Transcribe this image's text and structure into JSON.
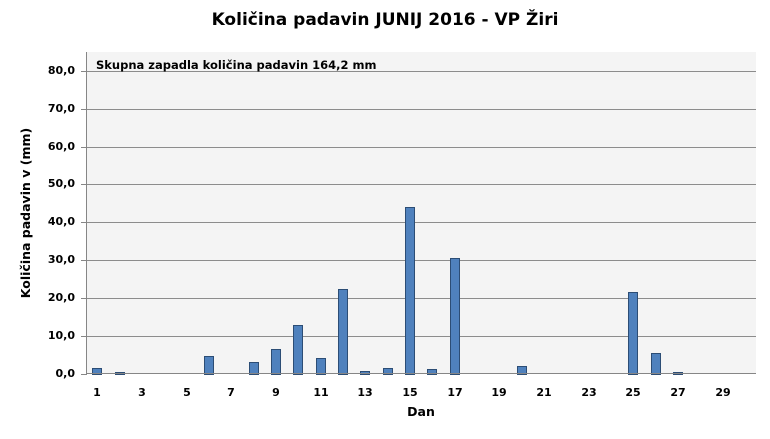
{
  "chart_data": {
    "type": "bar",
    "title": "Količina padavin JUNIJ 2016 - VP Žiri",
    "xlabel": "Dan",
    "ylabel": "Količina padavin v  (mm)",
    "annotation": "Skupna zapadla količina padavin 164,2 mm",
    "ylim": [
      0,
      80
    ],
    "yticks": [
      "0,0",
      "10,0",
      "20,0",
      "30,0",
      "40,0",
      "50,0",
      "60,0",
      "70,0",
      "80,0"
    ],
    "ytick_values": [
      0,
      10,
      20,
      30,
      40,
      50,
      60,
      70,
      80
    ],
    "xtick_labels": [
      "1",
      "3",
      "5",
      "7",
      "9",
      "11",
      "13",
      "15",
      "17",
      "19",
      "21",
      "23",
      "25",
      "27",
      "29"
    ],
    "grid": true,
    "legend": "none",
    "bar_color": "#4f81bd",
    "bar_edge_color": "#2c4d75",
    "plot_background": "#f4f4f4",
    "categories": [
      1,
      2,
      3,
      4,
      5,
      6,
      7,
      8,
      9,
      10,
      11,
      12,
      13,
      14,
      15,
      16,
      17,
      18,
      19,
      20,
      21,
      22,
      23,
      24,
      25,
      26,
      27,
      28,
      29,
      30
    ],
    "values": [
      1.5,
      0.5,
      0,
      0,
      0,
      4.7,
      0,
      3.3,
      6.5,
      12.9,
      4.1,
      22.6,
      0.7,
      1.5,
      44.2,
      1.2,
      30.7,
      0,
      0,
      2.1,
      0,
      0,
      0,
      0,
      21.8,
      5.5,
      0.4,
      0,
      0,
      0
    ]
  }
}
